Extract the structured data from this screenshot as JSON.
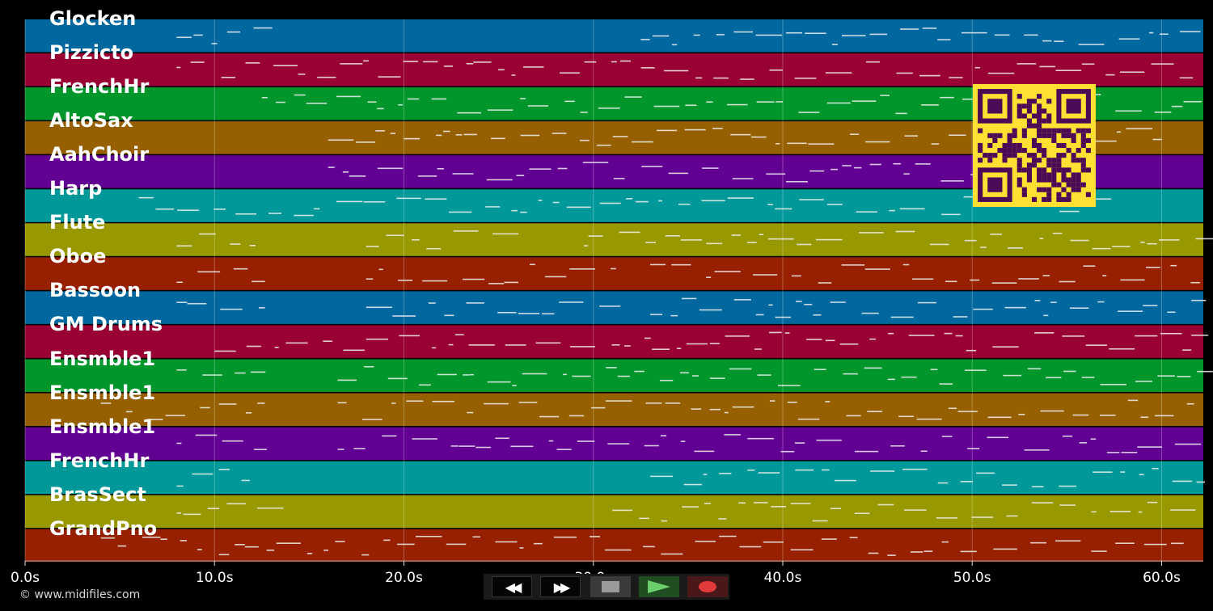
{
  "tracks": [
    {
      "name": "Glocken",
      "color": "#00689e"
    },
    {
      "name": "Pizzicto",
      "color": "#990033"
    },
    {
      "name": "FrenchHr",
      "color": "#00962c"
    },
    {
      "name": "AltoSax",
      "color": "#966000"
    },
    {
      "name": "AahChoir",
      "color": "#620094"
    },
    {
      "name": "Harp",
      "color": "#009898"
    },
    {
      "name": "Flute",
      "color": "#989800"
    },
    {
      "name": "Oboe",
      "color": "#962000"
    },
    {
      "name": "Bassoon",
      "color": "#00689e"
    },
    {
      "name": "GM Drums",
      "color": "#990033"
    },
    {
      "name": "Ensmble1",
      "color": "#00962c"
    },
    {
      "name": "Ensmble1",
      "color": "#966000"
    },
    {
      "name": "Ensmble1",
      "color": "#620094"
    },
    {
      "name": "FrenchHr",
      "color": "#009898"
    },
    {
      "name": "BrasSect",
      "color": "#989800"
    },
    {
      "name": "GrandPno",
      "color": "#962000"
    }
  ],
  "time_axis": {
    "ticks": [
      "0.0s",
      "10.0s",
      "20.0s",
      "30.0s",
      "40.0s",
      "50.0s",
      "60.0s"
    ],
    "tick_values": [
      0,
      10,
      20,
      30,
      40,
      50,
      60
    ],
    "max_seconds": 62.2
  },
  "copyright": "© www.midifiles.com",
  "controls": {
    "rewind_icon": "rewind-icon",
    "fast_forward_icon": "fast-forward-icon",
    "stop_icon": "stop-icon",
    "play_icon": "play-icon",
    "record_icon": "record-icon"
  },
  "qr": {
    "color_bg": "#ffe033",
    "color_fg": "#4a0a55"
  }
}
